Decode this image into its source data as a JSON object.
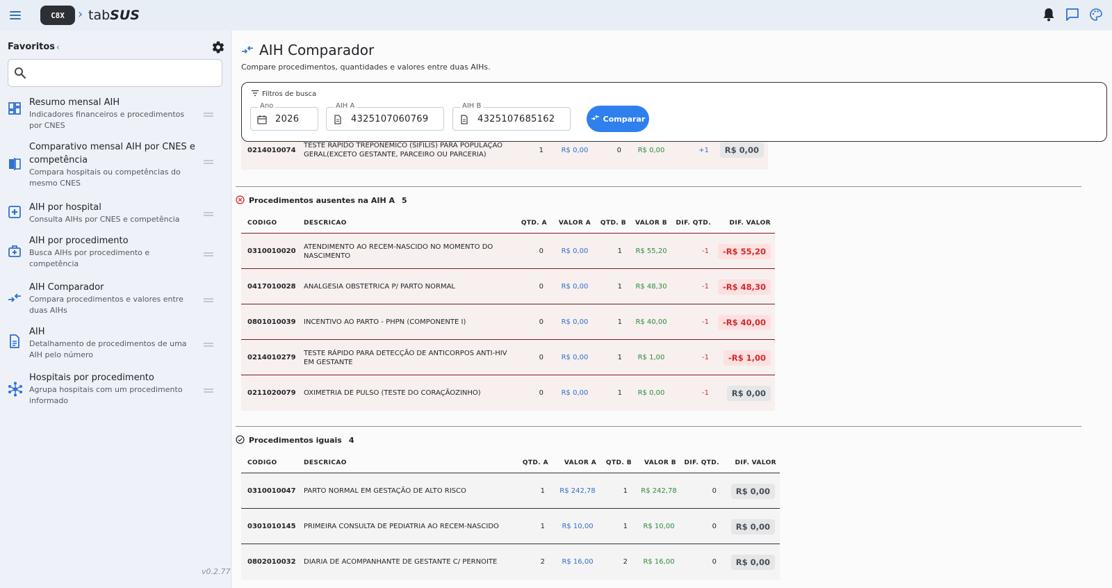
{
  "app": {
    "logo_badge": "C8X",
    "logo_prefix": "tab",
    "logo_brand": "SUS",
    "version": "v0.2.77"
  },
  "top_icons": [
    "bell-icon",
    "chat-icon",
    "palette-icon"
  ],
  "sidebar": {
    "favorites_title": "Favoritos",
    "collapse_glyph": "‹",
    "search_placeholder": "",
    "items": [
      {
        "title": "Resumo mensal AIH",
        "desc": "Indicadores financeiros e procedimentos por CNES",
        "icon": "dashboard-icon"
      },
      {
        "title": "Comparativo mensal AIH por CNES e competência",
        "desc": "Compara hospitais ou competências do mesmo CNES",
        "icon": "compare-icon"
      },
      {
        "title": "AIH por hospital",
        "desc": "Consulta AIHs por CNES e competência",
        "icon": "hospital-icon"
      },
      {
        "title": "AIH por procedimento",
        "desc": "Busca AIHs por procedimento e competência",
        "icon": "medical-bag-icon"
      },
      {
        "title": "AIH Comparador",
        "desc": "Compara procedimentos e valores entre duas AIHs",
        "icon": "arrows-compare-icon"
      },
      {
        "title": "AIH",
        "desc": "Detalhamento de procedimentos de uma AIH pelo número",
        "icon": "document-icon"
      },
      {
        "title": "Hospitais por procedimento",
        "desc": "Agrupa hospitais com um procedimento informado",
        "icon": "hub-icon"
      }
    ]
  },
  "main": {
    "title": "AIH Comparador",
    "subtitle": "Compare procedimentos, quantidades e valores entre duas AIHs.",
    "filters": {
      "heading": "Filtros de busca",
      "ano_label": "Ano",
      "ano_value": "2026",
      "aih_a_label": "AIH A",
      "aih_a_value": "4325107060769",
      "aih_b_label": "AIH B",
      "aih_b_value": "4325107685162",
      "compare_label": "Comparar"
    },
    "partial_row": {
      "code": "0214010074",
      "desc": "TESTE RAPIDO TREPONEMICO (SIFILIS) PARA POPULAÇÃO GERAL(EXCETO GESTANTE, PARCEIRO OU PARCERIA)",
      "qa": "1",
      "va": "R$ 0,00",
      "qb": "0",
      "vb": "R$ 0,00",
      "dq": "+1",
      "dv": "R$ 0,00"
    },
    "headers": {
      "code": "CODIGO",
      "desc": "DESCRICAO",
      "qa": "QTD. A",
      "va": "VALOR A",
      "qb": "QTD. B",
      "vb": "VALOR B",
      "dq": "DIF. QTD.",
      "dv": "DIF. VALOR"
    },
    "section_absent": {
      "title": "Procedimentos ausentes na AIH A",
      "count": "5",
      "rows": [
        {
          "code": "0310010020",
          "desc": "ATENDIMENTO AO RECEM-NASCIDO NO MOMENTO DO NASCIMENTO",
          "qa": "0",
          "va": "R$ 0,00",
          "qb": "1",
          "vb": "R$ 55,20",
          "dq": "-1",
          "dv": "-R$ 55,20",
          "neg": true
        },
        {
          "code": "0417010028",
          "desc": "ANALGESIA OBSTETRICA P/ PARTO NORMAL",
          "qa": "0",
          "va": "R$ 0,00",
          "qb": "1",
          "vb": "R$ 48,30",
          "dq": "-1",
          "dv": "-R$ 48,30",
          "neg": true
        },
        {
          "code": "0801010039",
          "desc": "INCENTIVO AO PARTO - PHPN (COMPONENTE I)",
          "qa": "0",
          "va": "R$ 0,00",
          "qb": "1",
          "vb": "R$ 40,00",
          "dq": "-1",
          "dv": "-R$ 40,00",
          "neg": true
        },
        {
          "code": "0214010279",
          "desc": "TESTE RÁPIDO PARA DETECÇÃO DE ANTICORPOS ANTI-HIV EM GESTANTE",
          "qa": "0",
          "va": "R$ 0,00",
          "qb": "1",
          "vb": "R$ 1,00",
          "dq": "-1",
          "dv": "-R$ 1,00",
          "neg": true
        },
        {
          "code": "0211020079",
          "desc": "OXIMETRIA DE PULSO (TESTE DO CORAÇÃOZINHO)",
          "qa": "0",
          "va": "R$ 0,00",
          "qb": "1",
          "vb": "R$ 0,00",
          "dq": "-1",
          "dv": "R$ 0,00",
          "neg": false
        }
      ]
    },
    "section_equal": {
      "title": "Procedimentos iguais",
      "count": "4",
      "rows": [
        {
          "code": "0310010047",
          "desc": "PARTO NORMAL EM GESTAÇÃO DE ALTO RISCO",
          "qa": "1",
          "va": "R$ 242,78",
          "qb": "1",
          "vb": "R$ 242,78",
          "dq": "0",
          "dv": "R$ 0,00",
          "neg": false
        },
        {
          "code": "0301010145",
          "desc": "PRIMEIRA CONSULTA DE PEDIATRIA AO RECEM-NASCIDO",
          "qa": "1",
          "va": "R$ 10,00",
          "qb": "1",
          "vb": "R$ 10,00",
          "dq": "0",
          "dv": "R$ 0,00",
          "neg": false
        },
        {
          "code": "0802010032",
          "desc": "DIARIA DE ACOMPANHANTE DE GESTANTE C/ PERNOITE",
          "qa": "2",
          "va": "R$ 16,00",
          "qb": "2",
          "vb": "R$ 16,00",
          "dq": "0",
          "dv": "R$ 0,00",
          "neg": false
        }
      ]
    },
    "colors": {
      "accent": "#2f80ed",
      "value_a": "#2f6fd0",
      "value_b": "#2e8b3d",
      "negative": "#d42a2a"
    }
  }
}
